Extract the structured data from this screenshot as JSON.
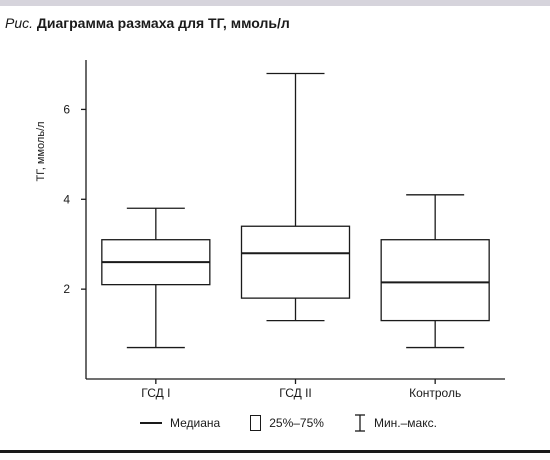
{
  "figure": {
    "caption_prefix": "Рис.",
    "caption_title": "Диаграмма размаха для ТГ, ммоль/л",
    "band_color": "#d6d4dc",
    "rule_color": "#1a1a1a"
  },
  "chart_data": {
    "type": "box",
    "title": "Диаграмма размаха для ТГ, ммоль/л",
    "xlabel": "",
    "ylabel": "ТГ, ммоль/л",
    "ylim": [
      0.0,
      7.1
    ],
    "yticks": [
      2,
      4,
      6
    ],
    "categories": [
      "ГСД I",
      "ГСД II",
      "Контроль"
    ],
    "series": [
      {
        "category": "ГСД I",
        "min": 0.7,
        "q1": 2.1,
        "median": 2.6,
        "q3": 3.1,
        "max": 3.8
      },
      {
        "category": "ГСД II",
        "min": 1.3,
        "q1": 1.8,
        "median": 2.8,
        "q3": 3.4,
        "max": 6.8
      },
      {
        "category": "Контроль",
        "min": 0.7,
        "q1": 1.3,
        "median": 2.15,
        "q3": 3.1,
        "max": 4.1
      }
    ],
    "grid": false,
    "legend": {
      "position": "bottom",
      "items": [
        {
          "symbol": "median-line",
          "label": "Медиана"
        },
        {
          "symbol": "iqr-box",
          "label": "25%–75%"
        },
        {
          "symbol": "range-whisker",
          "label": "Мин.–макс."
        }
      ]
    }
  }
}
